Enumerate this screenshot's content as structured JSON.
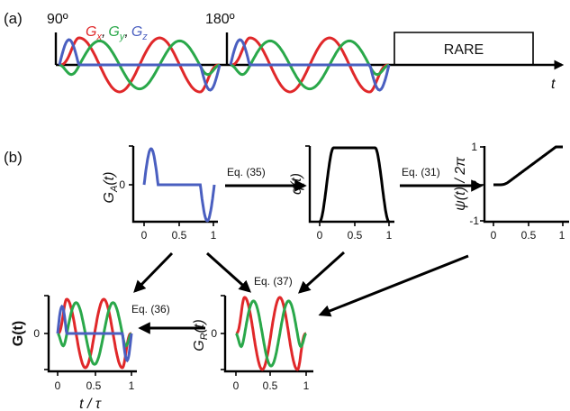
{
  "panel_a": {
    "label": "(a)",
    "pulse1": "90º",
    "pulse2": "180º",
    "gx": "G",
    "gx_sub": "x",
    "gy": "G",
    "gy_sub": "y",
    "gz": "G",
    "gz_sub": "z",
    "sep1": ",",
    "sep2": ",",
    "rare": "RARE",
    "time": "t"
  },
  "panel_b": {
    "label": "(b)",
    "ga": {
      "y_main": "G",
      "y_sub": "A",
      "y_arg": "(t)",
      "ytick": "0",
      "xticks": [
        "0",
        "0.5",
        "1"
      ]
    },
    "q": {
      "y_label": "q(t)",
      "xticks": [
        "0",
        "0.5",
        "1"
      ]
    },
    "psi": {
      "y_label": "ψ(t) / 2π",
      "yticks": [
        "1",
        "0",
        "-1"
      ],
      "xticks": [
        "0",
        "0.5",
        "1"
      ]
    },
    "g": {
      "y_label": "G(t)",
      "ytick": "0",
      "xticks": [
        "0",
        "0.5",
        "1"
      ],
      "x_label": "t / τ"
    },
    "gr": {
      "y_main": "G",
      "y_sub": "R",
      "y_arg": "(t)",
      "ytick": "0",
      "xticks": [
        "0",
        "0.5",
        "1"
      ]
    },
    "eq35": "Eq. (35)",
    "eq31": "Eq. (31)",
    "eq37": "Eq. (37)",
    "eq36": "Eq. (36)"
  },
  "colors": {
    "red": "#e0282a",
    "green": "#2aa84a",
    "blue": "#4a5fc0",
    "black": "#000000"
  }
}
